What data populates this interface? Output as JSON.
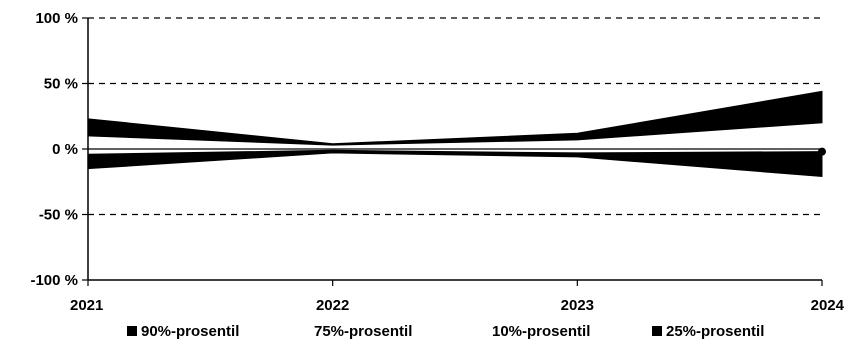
{
  "chart_data": {
    "type": "area",
    "x": [
      "2021",
      "2022",
      "2023",
      "2024"
    ],
    "y_ticks": [
      "100 %",
      "50 %",
      "0 %",
      "-50 %",
      "-100 %"
    ],
    "y_tick_values": [
      100,
      50,
      0,
      -50,
      -100
    ],
    "ylim": [
      -100,
      100
    ],
    "grid": "dashed horizontal",
    "legend_placement": "bottom",
    "bands": [
      {
        "legend_index": 0,
        "upper_values": [
          23,
          4,
          12,
          44
        ],
        "lower_values": [
          10,
          3,
          7,
          20
        ]
      },
      {
        "legend_index": 3,
        "upper_values": [
          -4,
          -1,
          -3,
          -2
        ],
        "lower_values": [
          -15,
          -3,
          -6,
          -21
        ]
      }
    ],
    "series": [
      {
        "name": "90%-prosentil",
        "values": [
          23,
          4,
          12,
          44
        ],
        "marker": "square"
      },
      {
        "name": "75%-prosentil",
        "values": [
          10,
          3,
          7,
          20
        ],
        "marker": "none"
      },
      {
        "name": "10%-prosentil",
        "values": [
          -15,
          -3,
          -6,
          -21
        ],
        "marker": "none"
      },
      {
        "name": "25%-prosentil",
        "values": [
          -4,
          -1,
          -3,
          -2
        ],
        "marker": "square"
      }
    ],
    "colors": {
      "band": "#000000",
      "grid": "#000000",
      "background": "#ffffff"
    }
  }
}
